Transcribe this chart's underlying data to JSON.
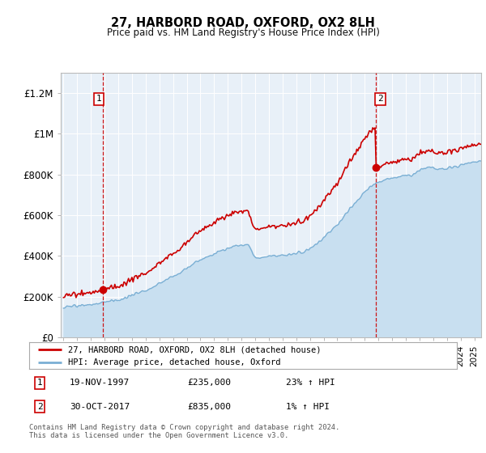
{
  "title": "27, HARBORD ROAD, OXFORD, OX2 8LH",
  "subtitle": "Price paid vs. HM Land Registry's House Price Index (HPI)",
  "property_label": "27, HARBORD ROAD, OXFORD, OX2 8LH (detached house)",
  "hpi_label": "HPI: Average price, detached house, Oxford",
  "footer": "Contains HM Land Registry data © Crown copyright and database right 2024.\nThis data is licensed under the Open Government Licence v3.0.",
  "property_color": "#cc0000",
  "hpi_color": "#7aafd4",
  "hpi_fill_color": "#c8dff0",
  "plot_bg": "#e8f0f8",
  "annotation1": {
    "label": "1",
    "date": "19-NOV-1997",
    "price": "£235,000",
    "pct": "23% ↑ HPI"
  },
  "annotation2": {
    "label": "2",
    "date": "30-OCT-2017",
    "price": "£835,000",
    "pct": "1% ↑ HPI"
  },
  "ylim": [
    0,
    1300000
  ],
  "yticks": [
    0,
    200000,
    400000,
    600000,
    800000,
    1000000,
    1200000
  ],
  "ytick_labels": [
    "£0",
    "£200K",
    "£400K",
    "£600K",
    "£800K",
    "£1M",
    "£1.2M"
  ],
  "xstart": 1994.8,
  "xend": 2025.5,
  "t1": 1997.88,
  "t2": 2017.83,
  "price1": 235000,
  "price2": 835000
}
